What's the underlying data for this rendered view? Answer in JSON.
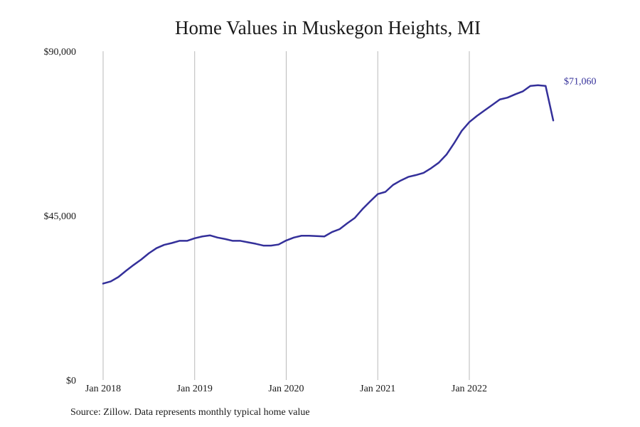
{
  "chart_data": {
    "type": "line",
    "title": "Home Values in Muskegon Heights, MI",
    "source_note": "Source: Zillow. Data represents monthly typical home value",
    "xlabel": "",
    "ylabel": "",
    "x_range": [
      "2018-01",
      "2022-12"
    ],
    "x_ticks": [
      {
        "date": "2018-01",
        "label": "Jan 2018"
      },
      {
        "date": "2019-01",
        "label": "Jan 2019"
      },
      {
        "date": "2020-01",
        "label": "Jan 2020"
      },
      {
        "date": "2021-01",
        "label": "Jan 2021"
      },
      {
        "date": "2022-01",
        "label": "Jan 2022"
      }
    ],
    "ylim": [
      0,
      90000
    ],
    "y_ticks": [
      {
        "value": 0,
        "label": "$0"
      },
      {
        "value": 45000,
        "label": "$45,000"
      },
      {
        "value": 90000,
        "label": "$90,000"
      }
    ],
    "grid": "vertical at x ticks",
    "line_color": "#34309a",
    "end_label": "$71,060",
    "series": [
      {
        "x": [
          "2018-01",
          "2018-02",
          "2018-03",
          "2018-04",
          "2018-05",
          "2018-06",
          "2018-07",
          "2018-08",
          "2018-09",
          "2018-10",
          "2018-11",
          "2018-12",
          "2019-01",
          "2019-02",
          "2019-03",
          "2019-04",
          "2019-05",
          "2019-06",
          "2019-07",
          "2019-08",
          "2019-09",
          "2019-10",
          "2019-11",
          "2019-12",
          "2020-01",
          "2020-02",
          "2020-03",
          "2020-04",
          "2020-05",
          "2020-06",
          "2020-07",
          "2020-08",
          "2020-09",
          "2020-10",
          "2020-11",
          "2020-12",
          "2021-01",
          "2021-02",
          "2021-03",
          "2021-04",
          "2021-05",
          "2021-06",
          "2021-07",
          "2021-08",
          "2021-09",
          "2021-10",
          "2021-11",
          "2021-12",
          "2022-01",
          "2022-02",
          "2022-03",
          "2022-04",
          "2022-05",
          "2022-06",
          "2022-07",
          "2022-08",
          "2022-09",
          "2022-10",
          "2022-11",
          "2022-12"
        ],
        "values": [
          26400,
          27000,
          28200,
          29900,
          31500,
          33000,
          34700,
          36100,
          37000,
          37500,
          38100,
          38100,
          38800,
          39300,
          39600,
          39000,
          38600,
          38100,
          38100,
          37700,
          37300,
          36800,
          36800,
          37100,
          38200,
          39000,
          39500,
          39500,
          39400,
          39300,
          40500,
          41300,
          42900,
          44400,
          46800,
          48900,
          50900,
          51500,
          53400,
          54600,
          55600,
          56100,
          56700,
          58000,
          59500,
          61700,
          64800,
          68200,
          70600,
          72300,
          73800,
          75300,
          76800,
          77300,
          78200,
          79000,
          80500,
          80700,
          80500,
          71060
        ]
      }
    ]
  }
}
